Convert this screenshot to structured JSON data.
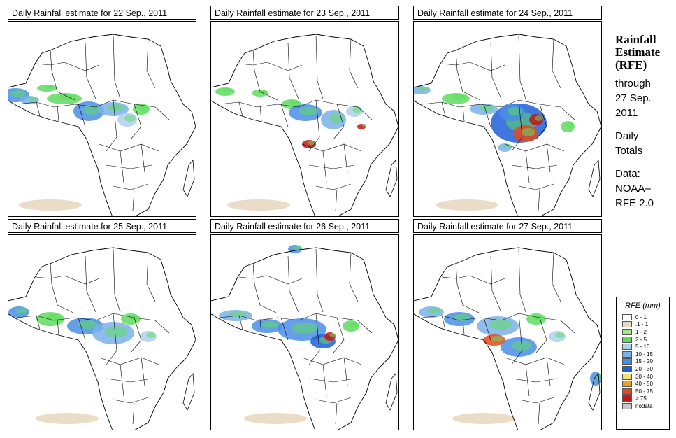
{
  "panels": [
    {
      "title": "Daily Rainfall estimate for  22 Sep., 2011"
    },
    {
      "title": "Daily Rainfall estimate for  23 Sep., 2011"
    },
    {
      "title": "Daily Rainfall estimate for  24 Sep., 2011"
    },
    {
      "title": "Daily Rainfall estimate for  25 Sep., 2011"
    },
    {
      "title": "Daily Rainfall estimate for  26 Sep., 2011"
    },
    {
      "title": "Daily Rainfall estimate for  27 Sep., 2011"
    }
  ],
  "side": {
    "line1": "Rainfall",
    "line2": "Estimate",
    "line3": "(RFE)",
    "through": "through",
    "date1": "27 Sep.",
    "date2": "2011",
    "daily1": "Daily",
    "daily2": "Totals",
    "data1": "Data:",
    "data2": "NOAA–",
    "data3": "RFE 2.0"
  },
  "legend": {
    "title": "RFE (mm)",
    "items": [
      {
        "label": "0 - 1",
        "color": "#ffffff"
      },
      {
        "label": ".1 - 1",
        "color": "#e8d9c2"
      },
      {
        "label": "1 - 2",
        "color": "#a8e68c"
      },
      {
        "label": "2 - 5",
        "color": "#5fdc5f"
      },
      {
        "label": "5 - 10",
        "color": "#aed0ec"
      },
      {
        "label": "10 - 15",
        "color": "#7ab2ea"
      },
      {
        "label": "15 - 20",
        "color": "#4a8de6"
      },
      {
        "label": "20 - 30",
        "color": "#1d5fd8"
      },
      {
        "label": "30 - 40",
        "color": "#f8e070"
      },
      {
        "label": "40 - 50",
        "color": "#f39a1e"
      },
      {
        "label": "50 - 75",
        "color": "#e6471c"
      },
      {
        "label": "> 75",
        "color": "#c81414"
      },
      {
        "label": "nodata",
        "color": "#c8c8c8"
      }
    ]
  }
}
